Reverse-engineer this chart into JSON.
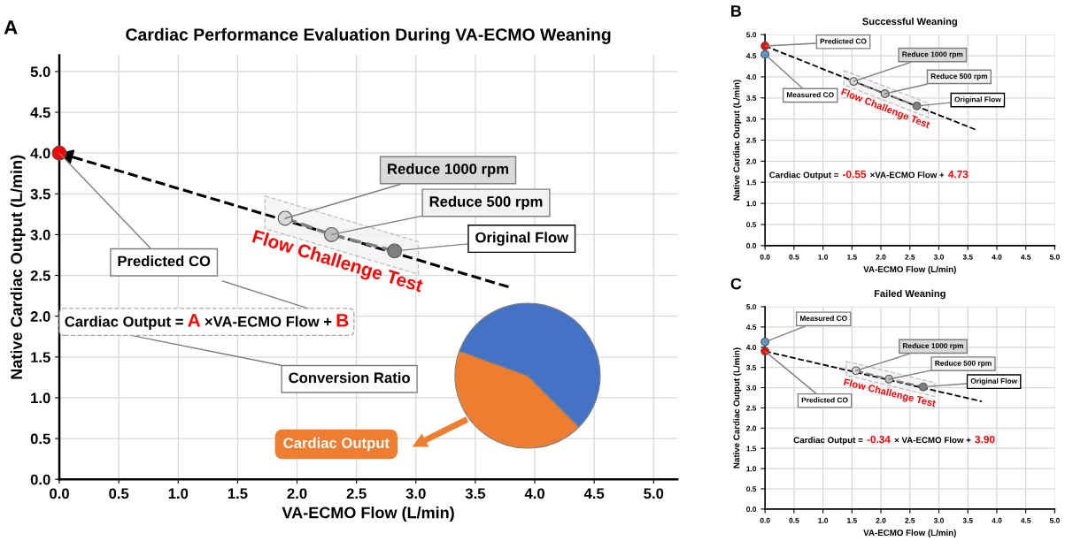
{
  "chart_data": [
    {
      "type": "scatter",
      "title": "Cardiac Performance Evaluation During VA-ECMO Weaning",
      "xlabel": "VA-ECMO Flow (L/min)",
      "ylabel": "Native Cardiac Output (L/min)",
      "series": [
        {
          "type": "line",
          "x": [
            0,
            3.8
          ],
          "values": [
            4.0,
            2.35
          ],
          "color": "#000000"
        },
        {
          "type": "line",
          "x": [
            1.9,
            2.29,
            2.82
          ],
          "values": [
            3.2,
            3.0,
            2.8
          ],
          "color": "#808080"
        },
        {
          "x": [
            0,
            1.9,
            2.29,
            2.82
          ],
          "values": [
            4.0,
            3.2,
            3.0,
            2.8
          ],
          "colors": [
            "#ff0000",
            "#d9d9d9",
            "#bfbfbf",
            "#7f7f7f"
          ],
          "marker": "circle"
        }
      ],
      "annotations": [
        "A",
        {
          "text": "Predicted CO",
          "x": 0,
          "y": 4.0
        },
        {
          "text": "Reduce 1000 rpm",
          "x": 1.9,
          "y": 3.2
        },
        {
          "text": "Reduce 500 rpm",
          "x": 2.29,
          "y": 3.0
        },
        {
          "text": "Original Flow",
          "x": 2.82,
          "y": 2.8
        },
        "Flow Challenge Test",
        "Cardiac Output =",
        "A",
        "×VA-ECMO Flow +",
        "B",
        "Conversion Ratio",
        "Cardiac Output"
      ],
      "xlim": [
        0,
        5.2
      ],
      "ylim": [
        0,
        5.2
      ],
      "xticks": [
        {
          "value": 0,
          "label": "0.0"
        },
        {
          "value": 0.5,
          "label": "0.5"
        },
        {
          "value": 1,
          "label": "1.0"
        },
        {
          "value": 1.5,
          "label": "1.5"
        },
        {
          "value": 2,
          "label": "2.0"
        },
        {
          "value": 2.5,
          "label": "2.5"
        },
        {
          "value": 3,
          "label": "3.0"
        },
        {
          "value": 3.5,
          "label": "3.5"
        },
        {
          "value": 4,
          "label": "4.0"
        },
        {
          "value": 4.5,
          "label": "4.5"
        },
        {
          "value": 5,
          "label": "5.0"
        }
      ],
      "yticks": [
        {
          "value": 0,
          "label": "0.0"
        },
        {
          "value": 0.5,
          "label": "0.5"
        },
        {
          "value": 1,
          "label": "1.0"
        },
        {
          "value": 1.5,
          "label": "1.5"
        },
        {
          "value": 2,
          "label": "2.0"
        },
        {
          "value": 2.5,
          "label": "2.5"
        },
        {
          "value": 3,
          "label": "3.0"
        },
        {
          "value": 3.5,
          "label": "3.5"
        },
        {
          "value": 4,
          "label": "4.0"
        },
        {
          "value": 4.5,
          "label": "4.5"
        },
        {
          "value": 5,
          "label": "5.0"
        }
      ],
      "grid": true,
      "line_style": "dashed"
    },
    {
      "type": "scatter",
      "title": "Successful Weaning",
      "xlabel": "VA-ECMO Flow (L/min)",
      "ylabel": "Native Cardiac Output (L/min)",
      "series": [
        {
          "type": "line",
          "x": [
            0,
            3.63
          ],
          "values": [
            4.73,
            2.75
          ],
          "color": "#000000"
        },
        {
          "type": "line",
          "x": [
            1.53,
            2.07,
            2.62
          ],
          "values": [
            3.89,
            3.6,
            3.31
          ],
          "color": "#808080"
        },
        {
          "x": [
            0,
            0,
            1.53,
            2.07,
            2.62
          ],
          "values": [
            4.73,
            4.53,
            3.89,
            3.6,
            3.31
          ],
          "colors": [
            "#ff0000",
            "#5b9bd5",
            "#d9d9d9",
            "#bfbfbf",
            "#7f7f7f"
          ],
          "marker": "circle"
        }
      ],
      "annotations": [
        "B",
        {
          "text": "Predicted CO",
          "x": 0,
          "y": 4.73
        },
        {
          "text": "Measured CO",
          "x": 0,
          "y": 4.53
        },
        {
          "text": "Reduce 1000 rpm",
          "x": 1.53,
          "y": 3.89
        },
        {
          "text": "Reduce 500 rpm",
          "x": 2.07,
          "y": 3.6
        },
        {
          "text": "Original Flow",
          "x": 2.62,
          "y": 3.31
        },
        "Flow Challenge Test",
        "Cardiac Output =",
        "-0.55",
        "×VA-ECMO Flow +",
        "4.73"
      ],
      "xlim": [
        0,
        5.0
      ],
      "ylim": [
        0,
        5.0
      ],
      "xticks": [
        {
          "value": 0,
          "label": "0.0"
        },
        {
          "value": 0.5,
          "label": "0.5"
        },
        {
          "value": 1,
          "label": "1.0"
        },
        {
          "value": 1.5,
          "label": "1.5"
        },
        {
          "value": 2,
          "label": "2.0"
        },
        {
          "value": 2.5,
          "label": "2.5"
        },
        {
          "value": 3,
          "label": "3.0"
        },
        {
          "value": 3.5,
          "label": "3.5"
        },
        {
          "value": 4,
          "label": "4.0"
        },
        {
          "value": 4.5,
          "label": "4.5"
        },
        {
          "value": 5,
          "label": "5.0"
        }
      ],
      "yticks": [
        {
          "value": 0,
          "label": "0.0"
        },
        {
          "value": 0.5,
          "label": "0.5"
        },
        {
          "value": 1,
          "label": "1.0"
        },
        {
          "value": 1.5,
          "label": "1.5"
        },
        {
          "value": 2,
          "label": "2.0"
        },
        {
          "value": 2.5,
          "label": "2.5"
        },
        {
          "value": 3,
          "label": "3.0"
        },
        {
          "value": 3.5,
          "label": "3.5"
        },
        {
          "value": 4,
          "label": "4.0"
        },
        {
          "value": 4.5,
          "label": "4.5"
        },
        {
          "value": 5,
          "label": "5.0"
        }
      ],
      "grid": true,
      "line_style": "dashed"
    },
    {
      "type": "scatter",
      "title": "Failed Weaning",
      "xlabel": "VA-ECMO Flow (L/min)",
      "ylabel": "Native Cardiac Output (L/min)",
      "series": [
        {
          "type": "line",
          "x": [
            0,
            3.74
          ],
          "values": [
            3.9,
            2.66
          ],
          "color": "#000000"
        },
        {
          "type": "line",
          "x": [
            1.57,
            2.14,
            2.73
          ],
          "values": [
            3.42,
            3.21,
            3.02
          ],
          "color": "#808080"
        },
        {
          "x": [
            0,
            0,
            1.57,
            2.14,
            2.73
          ],
          "values": [
            4.13,
            3.9,
            3.42,
            3.21,
            3.02
          ],
          "colors": [
            "#5b9bd5",
            "#ff0000",
            "#d9d9d9",
            "#bfbfbf",
            "#7f7f7f"
          ],
          "marker": "circle"
        }
      ],
      "annotations": [
        "C",
        {
          "text": "Measured CO",
          "x": 0,
          "y": 4.13
        },
        {
          "text": "Predicted CO",
          "x": 0,
          "y": 3.9
        },
        {
          "text": "Reduce 1000 rpm",
          "x": 1.57,
          "y": 3.42
        },
        {
          "text": "Reduce 500 rpm",
          "x": 2.14,
          "y": 3.21
        },
        {
          "text": "Original Flow",
          "x": 2.73,
          "y": 3.02
        },
        "Flow Challenge Test",
        "Cardiac Output =",
        "-0.34",
        "× VA-ECMO Flow +",
        "3.90"
      ],
      "xlim": [
        0,
        5.0
      ],
      "ylim": [
        0,
        5.0
      ],
      "xticks": [
        {
          "value": 0,
          "label": "0.0"
        },
        {
          "value": 0.5,
          "label": "0.5"
        },
        {
          "value": 1,
          "label": "1.0"
        },
        {
          "value": 1.5,
          "label": "1.5"
        },
        {
          "value": 2,
          "label": "2.0"
        },
        {
          "value": 2.5,
          "label": "2.5"
        },
        {
          "value": 3,
          "label": "3.0"
        },
        {
          "value": 3.5,
          "label": "3.5"
        },
        {
          "value": 4,
          "label": "4.0"
        },
        {
          "value": 4.5,
          "label": "4.5"
        },
        {
          "value": 5,
          "label": "5.0"
        }
      ],
      "yticks": [
        {
          "value": 0,
          "label": "0.0"
        },
        {
          "value": 0.5,
          "label": "0.5"
        },
        {
          "value": 1,
          "label": "1.0"
        },
        {
          "value": 1.5,
          "label": "1.5"
        },
        {
          "value": 2,
          "label": "2.0"
        },
        {
          "value": 2.5,
          "label": "2.5"
        },
        {
          "value": 3,
          "label": "3.0"
        },
        {
          "value": 3.5,
          "label": "3.5"
        },
        {
          "value": 4,
          "label": "4.0"
        },
        {
          "value": 4.5,
          "label": "4.5"
        },
        {
          "value": 5,
          "label": "5.0"
        }
      ],
      "grid": true,
      "line_style": "dashed"
    }
  ]
}
